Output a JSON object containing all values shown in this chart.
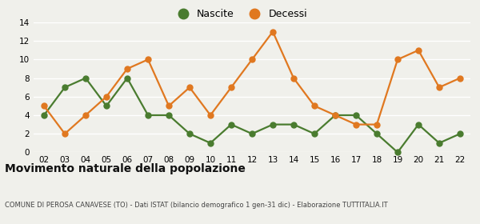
{
  "years": [
    "02",
    "03",
    "04",
    "05",
    "06",
    "07",
    "08",
    "09",
    "10",
    "11",
    "12",
    "13",
    "14",
    "15",
    "16",
    "17",
    "18",
    "19",
    "20",
    "21",
    "22"
  ],
  "nascite": [
    4,
    7,
    8,
    5,
    8,
    4,
    4,
    2,
    1,
    3,
    2,
    3,
    3,
    2,
    4,
    4,
    2,
    0,
    3,
    1,
    2
  ],
  "decessi": [
    5,
    2,
    4,
    6,
    9,
    10,
    5,
    7,
    4,
    7,
    10,
    13,
    8,
    5,
    4,
    3,
    3,
    10,
    11,
    7,
    8
  ],
  "nascite_color": "#4a7c2f",
  "decessi_color": "#e07820",
  "ylim": [
    0,
    14
  ],
  "yticks": [
    0,
    2,
    4,
    6,
    8,
    10,
    12,
    14
  ],
  "title": "Movimento naturale della popolazione",
  "subtitle": "COMUNE DI PEROSA CANAVESE (TO) - Dati ISTAT (bilancio demografico 1 gen-31 dic) - Elaborazione TUTTITALIA.IT",
  "legend_nascite": "Nascite",
  "legend_decessi": "Decessi",
  "bg_color": "#f0f0eb",
  "grid_color": "#ffffff",
  "marker_size": 5,
  "line_width": 1.6
}
